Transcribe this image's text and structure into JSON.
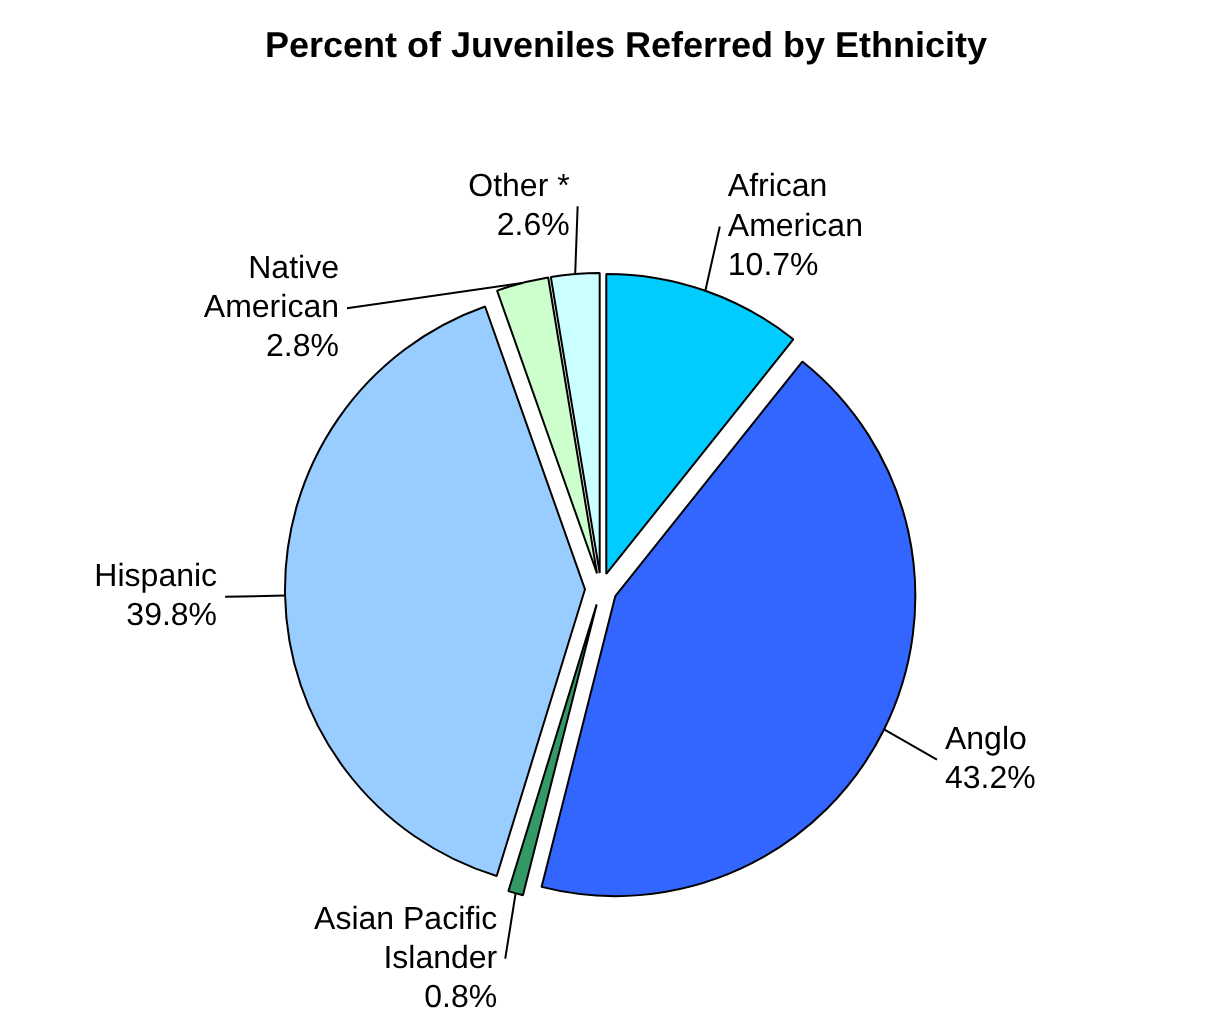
{
  "chart_data": {
    "type": "pie",
    "title": "Percent of Juveniles Referred by Ethnicity",
    "categories": [
      "African American",
      "Anglo",
      "Asian Pacific Islander",
      "Hispanic",
      "Native American",
      "Other *"
    ],
    "values": [
      10.7,
      43.2,
      0.8,
      39.8,
      2.8,
      2.6
    ],
    "colors": [
      "#00ccff",
      "#3366ff",
      "#339966",
      "#99ccff",
      "#ccffcc",
      "#ccffff"
    ],
    "value_labels": [
      "10.7%",
      "43.2%",
      "0.8%",
      "39.8%",
      "2.8%",
      "2.6%"
    ]
  }
}
